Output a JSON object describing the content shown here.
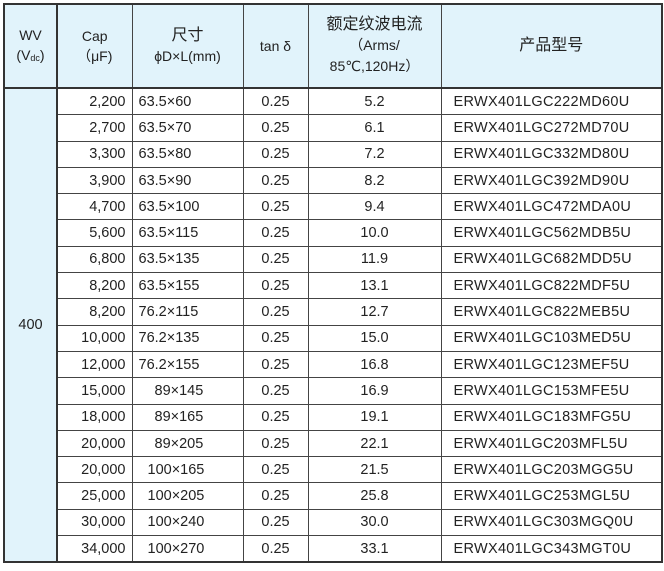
{
  "header": {
    "wv": "WV",
    "wv_unit_open": "(V",
    "wv_unit_sub": "dc",
    "wv_unit_close": ")",
    "cap": "Cap",
    "cap_unit": "（μF)",
    "size": "尺寸",
    "size_unit": "ϕD×L(mm)",
    "tan": "tan δ",
    "ripple": "额定纹波电流",
    "ripple_unit1": "（Arms/",
    "ripple_unit2": "85℃,120Hz）",
    "part": "产品型号"
  },
  "wv_value": "400",
  "rows": [
    {
      "cap": "2,200",
      "size": "63.5×60",
      "tan": "0.25",
      "ripple": "5.2",
      "part": "ERWX401LGC222MD60U"
    },
    {
      "cap": "2,700",
      "size": "63.5×70",
      "tan": "0.25",
      "ripple": "6.1",
      "part": "ERWX401LGC272MD70U"
    },
    {
      "cap": "3,300",
      "size": "63.5×80",
      "tan": "0.25",
      "ripple": "7.2",
      "part": "ERWX401LGC332MD80U"
    },
    {
      "cap": "3,900",
      "size": "63.5×90",
      "tan": "0.25",
      "ripple": "8.2",
      "part": "ERWX401LGC392MD90U"
    },
    {
      "cap": "4,700",
      "size": "63.5×100",
      "tan": "0.25",
      "ripple": "9.4",
      "part": "ERWX401LGC472MDA0U"
    },
    {
      "cap": "5,600",
      "size": "63.5×115",
      "tan": "0.25",
      "ripple": "10.0",
      "part": "ERWX401LGC562MDB5U"
    },
    {
      "cap": "6,800",
      "size": "63.5×135",
      "tan": "0.25",
      "ripple": "11.9",
      "part": "ERWX401LGC682MDD5U"
    },
    {
      "cap": "8,200",
      "size": "63.5×155",
      "tan": "0.25",
      "ripple": "13.1",
      "part": "ERWX401LGC822MDF5U"
    },
    {
      "cap": "8,200",
      "size": "76.2×115",
      "tan": "0.25",
      "ripple": "12.7",
      "part": "ERWX401LGC822MEB5U"
    },
    {
      "cap": "10,000",
      "size": "76.2×135",
      "tan": "0.25",
      "ripple": "15.0",
      "part": "ERWX401LGC103MED5U"
    },
    {
      "cap": "12,000",
      "size": "76.2×155",
      "tan": "0.25",
      "ripple": "16.8",
      "part": "ERWX401LGC123MEF5U"
    },
    {
      "cap": "15,000",
      "size": "89×145",
      "tan": "0.25",
      "ripple": "16.9",
      "part": "ERWX401LGC153MFE5U"
    },
    {
      "cap": "18,000",
      "size": "89×165",
      "tan": "0.25",
      "ripple": "19.1",
      "part": "ERWX401LGC183MFG5U"
    },
    {
      "cap": "20,000",
      "size": "89×205",
      "tan": "0.25",
      "ripple": "22.1",
      "part": "ERWX401LGC203MFL5U"
    },
    {
      "cap": "20,000",
      "size": "100×165",
      "tan": "0.25",
      "ripple": "21.5",
      "part": "ERWX401LGC203MGG5U"
    },
    {
      "cap": "25,000",
      "size": "100×205",
      "tan": "0.25",
      "ripple": "25.8",
      "part": "ERWX401LGC253MGL5U"
    },
    {
      "cap": "30,000",
      "size": "100×240",
      "tan": "0.25",
      "ripple": "30.0",
      "part": "ERWX401LGC303MGQ0U"
    },
    {
      "cap": "34,000",
      "size": "100×270",
      "tan": "0.25",
      "ripple": "33.1",
      "part": "ERWX401LGC343MGT0U"
    }
  ]
}
